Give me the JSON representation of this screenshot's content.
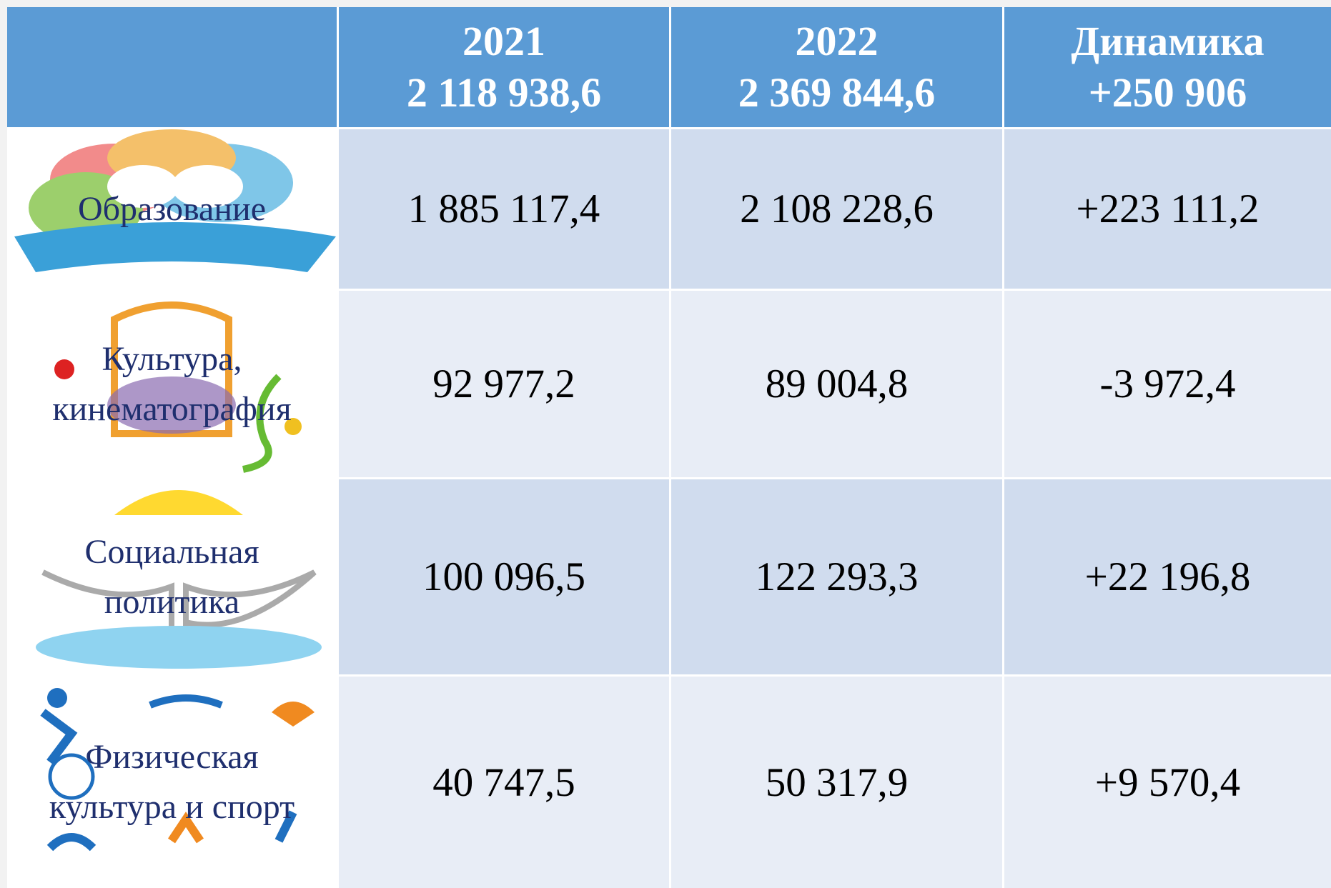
{
  "table": {
    "columns": [
      {
        "year": "2021",
        "total": "2 118 938,6"
      },
      {
        "year": "2022",
        "total": "2 369 844,6"
      },
      {
        "year": "Динамика",
        "total": "+250 906"
      }
    ],
    "rows": [
      {
        "label": [
          "Образование"
        ],
        "values": [
          "1 885 117,4",
          "2 108 228,6",
          "+223 111,2"
        ]
      },
      {
        "label": [
          "Культура,",
          "кинематография"
        ],
        "values": [
          "92 977,2",
          "89 004,8",
          "-3 972,4"
        ]
      },
      {
        "label": [
          "Социальная",
          "политика"
        ],
        "values": [
          "100 096,5",
          "122 293,3",
          "+22 196,8"
        ]
      },
      {
        "label": [
          "Физическая",
          "культура и спорт"
        ],
        "values": [
          "40 747,5",
          "50 317,9",
          "+9 570,4"
        ]
      }
    ]
  }
}
